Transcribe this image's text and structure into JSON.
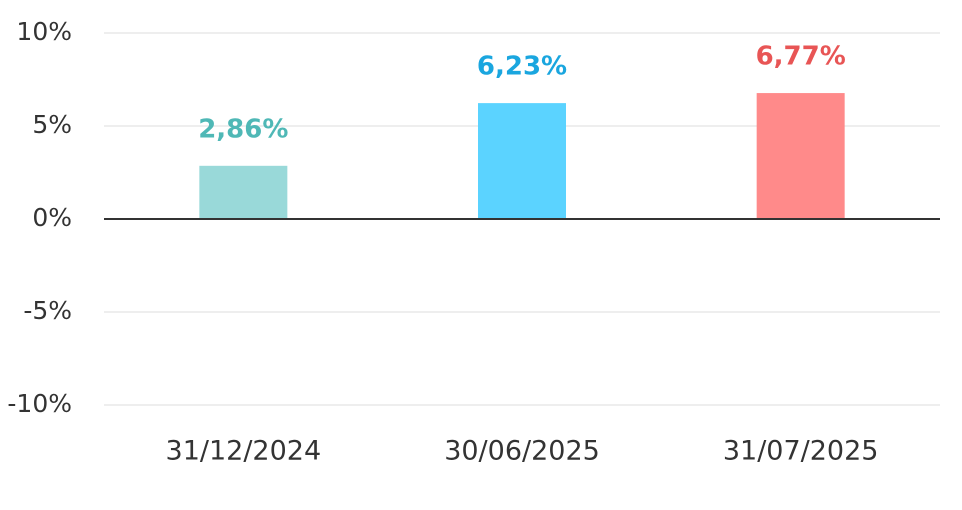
{
  "chart_data": {
    "type": "bar",
    "categories": [
      "31/12/2024",
      "30/06/2025",
      "31/07/2025"
    ],
    "values": [
      2.86,
      6.23,
      6.77
    ],
    "value_labels": [
      "2,86%",
      "6,23%",
      "6,77%"
    ],
    "colors": [
      "#99d9d9",
      "#5bd3ff",
      "#ff8a8a"
    ],
    "label_colors": [
      "#4fb8b6",
      "#1aa6df",
      "#e85555"
    ],
    "ylim": [
      -10,
      10
    ],
    "yticks": [
      {
        "value": -10,
        "label": "-10%"
      },
      {
        "value": -5,
        "label": "-5%"
      },
      {
        "value": 0,
        "label": "0%"
      },
      {
        "value": 5,
        "label": "5%"
      },
      {
        "value": 10,
        "label": "10%"
      }
    ],
    "grid": true
  }
}
